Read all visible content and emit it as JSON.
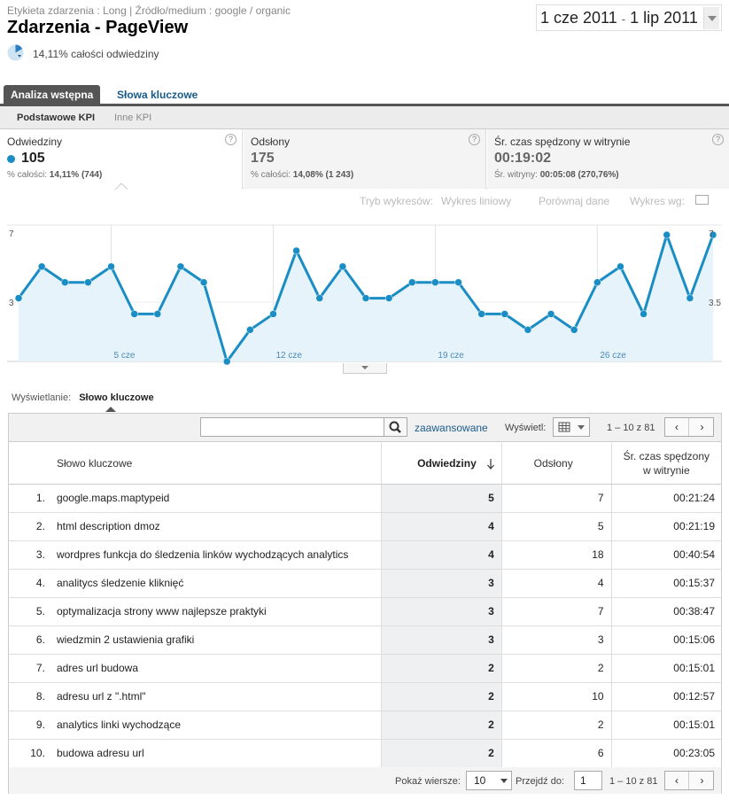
{
  "header": {
    "breadcrumb": "Etykieta zdarzenia : Long | Źródło/medium : google / organic",
    "title": "Zdarzenia - PageView",
    "date_start": "1 cze 2011",
    "date_sep": "-",
    "date_end": "1 lip 2011",
    "percent_text": "14,11% całości odwiedziny"
  },
  "tabs": {
    "analysis": "Analiza wstępna",
    "keywords": "Słowa kluczowe"
  },
  "subtabs": {
    "basic": "Podstawowe KPI",
    "other": "Inne KPI"
  },
  "kpis": {
    "visits": {
      "label": "Odwiedziny",
      "value": "105",
      "sub_prefix": "% całości: ",
      "sub_value": "14,11% (744)"
    },
    "pageviews": {
      "label": "Odsłony",
      "value": "175",
      "sub_prefix": "% całości: ",
      "sub_value": "14,08% (1 243)"
    },
    "time": {
      "label": "Śr. czas spędzony w witrynie",
      "value": "00:19:02",
      "sub_prefix": "Śr. witryny: ",
      "sub_value": "00:05:08",
      "sub_change": "(270,76%)"
    }
  },
  "chart_options": {
    "mode_label": "Tryb wykresów:",
    "mode_value": "Wykres liniowy",
    "compare": "Porównaj dane",
    "chart_by": "Wykres wg:"
  },
  "chart_data": {
    "type": "area",
    "x_tick_labels": [
      "5 cze",
      "12 cze",
      "19 cze",
      "26 cze"
    ],
    "y_left_ticks": [
      "7",
      "3"
    ],
    "y_right_ticks": [
      "7",
      "3.5"
    ],
    "ylim": [
      0,
      7.4
    ],
    "color": "#1a8ec4",
    "fill": "#e6f3fa",
    "series": [
      {
        "values": [
          3,
          5,
          4,
          4,
          5,
          2,
          2,
          5,
          4,
          -1,
          1,
          2,
          6,
          3,
          5,
          3,
          3,
          4,
          4,
          4,
          2,
          2,
          1,
          2,
          1,
          4,
          5,
          2,
          7,
          3,
          7
        ]
      }
    ]
  },
  "display": {
    "label": "Wyświetlanie:",
    "value": "Słowo kluczowe"
  },
  "toolbar": {
    "search_placeholder": "",
    "advanced": "zaawansowane",
    "show": "Wyświetl:",
    "range": "1 – 10 z 81",
    "prev": "‹",
    "next": "›"
  },
  "table": {
    "headers": {
      "keyword": "Słowo kluczowe",
      "visits": "Odwiedziny",
      "pageviews": "Odsłony",
      "time_line1": "Śr. czas spędzony",
      "time_line2": "w witrynie"
    },
    "rows": [
      {
        "idx": "1.",
        "keyword": "google.maps.maptypeid",
        "visits": "5",
        "pageviews": "7",
        "time": "00:21:24"
      },
      {
        "idx": "2.",
        "keyword": "html description dmoz",
        "visits": "4",
        "pageviews": "5",
        "time": "00:21:19"
      },
      {
        "idx": "3.",
        "keyword": "wordpres funkcja do śledzenia linków wychodzących analytics",
        "visits": "4",
        "pageviews": "18",
        "time": "00:40:54"
      },
      {
        "idx": "4.",
        "keyword": "analitycs śledzenie kliknięć",
        "visits": "3",
        "pageviews": "4",
        "time": "00:15:37"
      },
      {
        "idx": "5.",
        "keyword": "optymalizacja strony www najlepsze praktyki",
        "visits": "3",
        "pageviews": "7",
        "time": "00:38:47"
      },
      {
        "idx": "6.",
        "keyword": "wiedzmin 2 ustawienia grafiki",
        "visits": "3",
        "pageviews": "3",
        "time": "00:15:06"
      },
      {
        "idx": "7.",
        "keyword": "adres url budowa",
        "visits": "2",
        "pageviews": "2",
        "time": "00:15:01"
      },
      {
        "idx": "8.",
        "keyword": "adresu url z \".html\"",
        "visits": "2",
        "pageviews": "10",
        "time": "00:12:57"
      },
      {
        "idx": "9.",
        "keyword": "analytics linki wychodzące",
        "visits": "2",
        "pageviews": "2",
        "time": "00:15:01"
      },
      {
        "idx": "10.",
        "keyword": "budowa adresu url",
        "visits": "2",
        "pageviews": "6",
        "time": "00:23:05"
      }
    ]
  },
  "footer": {
    "rows_label": "Pokaż wiersze:",
    "rows_value": "10",
    "goto_label": "Przejdź do:",
    "goto_value": "1",
    "range": "1 – 10 z 81",
    "prev": "‹",
    "next": "›"
  }
}
